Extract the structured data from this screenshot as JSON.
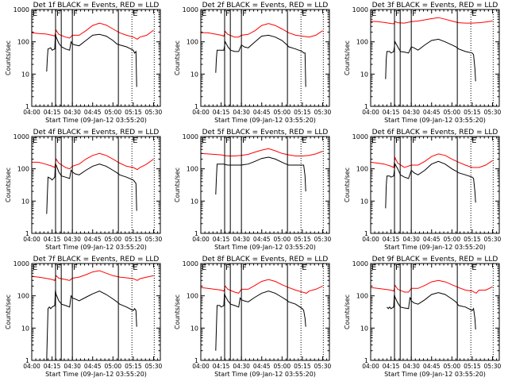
{
  "figure": {
    "layout": "3x3 grid",
    "xlabel": "Start Time (09-Jan-12 03:55:20)",
    "ylabel": "Counts/sec"
  },
  "chart_data": {
    "type": "line",
    "yscale": "log",
    "ylim": [
      1,
      1000
    ],
    "ytick_labels": [
      "1",
      "10",
      "100",
      "1000"
    ],
    "ytick_values": [
      1,
      10,
      100,
      1000
    ],
    "x_units": "minutes since 04:00",
    "xlim": [
      0,
      95
    ],
    "xtick_values": [
      0,
      15,
      30,
      45,
      60,
      75,
      90
    ],
    "xtick_labels": [
      "04:00",
      "04:15",
      "04:30",
      "04:45",
      "05:00",
      "05:15",
      "05:30"
    ],
    "xlabel": "Start Time (09-Jan-12 03:55:20)",
    "ylabel": "Counts/sec",
    "series_colors": {
      "Events": "#000000",
      "LLD": "#ff0000"
    },
    "markers": [
      {
        "label": "E",
        "x": 0,
        "style": "none"
      },
      {
        "label": "F",
        "x": 17.6,
        "style": "solid"
      },
      {
        "label": "",
        "x": 21.8,
        "style": "solid"
      },
      {
        "label": "F",
        "x": 30,
        "style": "solid"
      },
      {
        "label": "",
        "x": 64,
        "style": "solid"
      },
      {
        "label": "E",
        "x": 74,
        "style": "dotted"
      },
      {
        "label": "",
        "x": 90.5,
        "style": "dotted"
      }
    ],
    "panels": [
      {
        "title": "Det 1f BLACK = Events, RED = LLD",
        "lld": {
          "x": [
            0,
            5,
            10,
            15,
            17,
            18,
            20,
            25,
            28,
            30,
            35,
            40,
            45,
            50,
            55,
            60,
            65,
            70,
            75,
            78,
            80,
            85,
            90
          ],
          "y": [
            190,
            180,
            175,
            160,
            150,
            230,
            170,
            140,
            130,
            160,
            160,
            220,
            320,
            380,
            330,
            250,
            190,
            160,
            140,
            120,
            140,
            160,
            230
          ]
        },
        "events": {
          "x": [
            11,
            11.5,
            12,
            14,
            15,
            17,
            17.5,
            18,
            20,
            22,
            25,
            28,
            29,
            30,
            32,
            35,
            40,
            45,
            50,
            55,
            60,
            63,
            65,
            70,
            75,
            76,
            77,
            77.5
          ],
          "y": [
            12,
            30,
            60,
            65,
            55,
            60,
            180,
            140,
            90,
            70,
            60,
            55,
            100,
            85,
            80,
            75,
            110,
            160,
            170,
            150,
            110,
            85,
            80,
            70,
            55,
            45,
            50,
            4
          ]
        }
      },
      {
        "title": "Det 2f BLACK = Events, RED = LLD",
        "lld": {
          "x": [
            0,
            5,
            10,
            15,
            17,
            18,
            20,
            25,
            28,
            30,
            35,
            40,
            45,
            50,
            55,
            60,
            65,
            70,
            75,
            80,
            85,
            90
          ],
          "y": [
            190,
            190,
            175,
            160,
            150,
            210,
            170,
            140,
            140,
            160,
            170,
            220,
            320,
            370,
            320,
            250,
            190,
            160,
            150,
            140,
            160,
            220
          ]
        },
        "events": {
          "x": [
            11,
            11.5,
            12,
            14,
            15,
            17,
            18,
            20,
            22,
            25,
            28,
            30,
            32,
            35,
            40,
            45,
            50,
            55,
            60,
            63,
            65,
            70,
            75,
            76,
            77,
            77.5
          ],
          "y": [
            11,
            30,
            55,
            55,
            55,
            55,
            100,
            70,
            55,
            50,
            50,
            80,
            70,
            65,
            100,
            150,
            160,
            140,
            110,
            85,
            70,
            60,
            50,
            45,
            45,
            4
          ]
        }
      },
      {
        "title": "Det 3f BLACK = Events, RED = LLD",
        "lld": {
          "x": [
            0,
            5,
            10,
            15,
            17,
            18,
            20,
            25,
            30,
            35,
            40,
            45,
            50,
            55,
            60,
            65,
            70,
            75,
            80,
            85,
            90
          ],
          "y": [
            430,
            420,
            400,
            370,
            360,
            420,
            390,
            380,
            420,
            440,
            480,
            520,
            560,
            500,
            440,
            390,
            380,
            380,
            390,
            410,
            440
          ]
        },
        "events": {
          "x": [
            11,
            11.5,
            12,
            14,
            15,
            17,
            18,
            20,
            22,
            25,
            28,
            30,
            32,
            35,
            40,
            45,
            50,
            55,
            60,
            63,
            65,
            70,
            75,
            76,
            77,
            77.5
          ],
          "y": [
            7,
            30,
            50,
            50,
            45,
            50,
            100,
            70,
            50,
            48,
            45,
            70,
            65,
            55,
            80,
            110,
            120,
            100,
            80,
            70,
            60,
            50,
            45,
            40,
            15,
            6
          ]
        }
      },
      {
        "title": "Det 4f BLACK = Events, RED = LLD",
        "lld": {
          "x": [
            0,
            5,
            10,
            15,
            17,
            18,
            20,
            25,
            28,
            30,
            35,
            40,
            45,
            50,
            55,
            60,
            65,
            70,
            75,
            78,
            80,
            85,
            90
          ],
          "y": [
            160,
            160,
            140,
            120,
            110,
            200,
            150,
            110,
            100,
            120,
            140,
            200,
            260,
            300,
            260,
            200,
            150,
            120,
            110,
            95,
            110,
            140,
            200
          ]
        },
        "events": {
          "x": [
            11,
            11.5,
            12,
            14,
            15,
            17,
            17.5,
            18,
            20,
            22,
            25,
            28,
            29,
            30,
            32,
            35,
            40,
            45,
            50,
            55,
            60,
            63,
            65,
            70,
            75,
            76,
            77,
            77.5
          ],
          "y": [
            4,
            15,
            55,
            50,
            45,
            55,
            140,
            130,
            80,
            60,
            55,
            50,
            90,
            80,
            70,
            65,
            90,
            120,
            140,
            120,
            90,
            75,
            65,
            55,
            45,
            40,
            35,
            5
          ]
        }
      },
      {
        "title": "Det 5f BLACK = Events, RED = LLD",
        "lld": {
          "x": [
            0,
            5,
            10,
            15,
            17,
            20,
            25,
            30,
            35,
            40,
            45,
            50,
            55,
            60,
            65,
            70,
            75,
            80,
            85,
            90
          ],
          "y": [
            300,
            290,
            280,
            270,
            260,
            250,
            250,
            260,
            280,
            330,
            380,
            420,
            360,
            300,
            270,
            250,
            250,
            260,
            290,
            350
          ]
        },
        "events": {
          "x": [
            11,
            11.5,
            12,
            14,
            15,
            17,
            18,
            20,
            22,
            25,
            28,
            30,
            32,
            35,
            40,
            45,
            50,
            55,
            60,
            63,
            65,
            70,
            75,
            76,
            77,
            77.5
          ],
          "y": [
            16,
            50,
            140,
            140,
            140,
            140,
            135,
            130,
            130,
            130,
            130,
            130,
            135,
            140,
            170,
            210,
            230,
            200,
            160,
            140,
            130,
            130,
            130,
            130,
            60,
            20
          ]
        }
      },
      {
        "title": "Det 6f BLACK = Events, RED = LLD",
        "lld": {
          "x": [
            0,
            5,
            10,
            15,
            17,
            18,
            20,
            25,
            30,
            35,
            40,
            45,
            50,
            55,
            60,
            65,
            70,
            75,
            80,
            85,
            90
          ],
          "y": [
            160,
            150,
            140,
            120,
            110,
            220,
            150,
            110,
            130,
            130,
            170,
            240,
            290,
            260,
            200,
            160,
            130,
            110,
            110,
            130,
            180
          ]
        },
        "events": {
          "x": [
            11,
            11.5,
            12,
            14,
            15,
            17,
            18,
            20,
            22,
            25,
            28,
            30,
            32,
            35,
            40,
            45,
            50,
            55,
            60,
            63,
            65,
            70,
            75,
            76,
            77,
            77.5
          ],
          "y": [
            6,
            30,
            60,
            60,
            55,
            60,
            140,
            100,
            65,
            55,
            50,
            90,
            75,
            65,
            90,
            140,
            170,
            140,
            100,
            85,
            75,
            65,
            55,
            50,
            20,
            9
          ]
        }
      },
      {
        "title": "Det 7f BLACK = Events, RED = LLD",
        "lld": {
          "x": [
            0,
            5,
            10,
            15,
            17,
            18,
            20,
            25,
            28,
            30,
            35,
            40,
            45,
            50,
            55,
            60,
            65,
            70,
            75,
            78,
            80,
            85,
            90
          ],
          "y": [
            400,
            380,
            350,
            320,
            300,
            420,
            350,
            320,
            300,
            350,
            380,
            450,
            550,
            600,
            500,
            420,
            380,
            360,
            340,
            300,
            340,
            380,
            420
          ]
        },
        "events": {
          "x": [
            11,
            11.5,
            12,
            13,
            14,
            15,
            17,
            17.5,
            18,
            20,
            22,
            25,
            28,
            29,
            30,
            32,
            35,
            40,
            45,
            50,
            55,
            60,
            63,
            65,
            70,
            75,
            76,
            77,
            77.5
          ],
          "y": [
            1,
            6,
            40,
            45,
            40,
            45,
            50,
            150,
            110,
            70,
            55,
            50,
            45,
            100,
            85,
            80,
            70,
            90,
            115,
            140,
            110,
            80,
            65,
            55,
            45,
            35,
            40,
            35,
            11
          ]
        }
      },
      {
        "title": "Det 8f BLACK = Events, RED = LLD",
        "lld": {
          "x": [
            0,
            5,
            10,
            15,
            17,
            18,
            20,
            25,
            28,
            30,
            35,
            40,
            45,
            50,
            55,
            60,
            65,
            70,
            75,
            78,
            80,
            85,
            90
          ],
          "y": [
            180,
            170,
            160,
            150,
            140,
            200,
            160,
            130,
            120,
            160,
            160,
            210,
            280,
            320,
            280,
            220,
            180,
            150,
            130,
            120,
            140,
            160,
            200
          ]
        },
        "events": {
          "x": [
            11,
            11.5,
            12,
            14,
            15,
            17,
            17.5,
            18,
            20,
            22,
            25,
            28,
            29,
            30,
            32,
            35,
            40,
            45,
            50,
            55,
            60,
            63,
            65,
            70,
            75,
            76,
            77,
            77.5
          ],
          "y": [
            2,
            10,
            50,
            50,
            45,
            50,
            120,
            100,
            70,
            55,
            50,
            45,
            85,
            75,
            70,
            65,
            90,
            120,
            140,
            120,
            90,
            75,
            65,
            55,
            40,
            35,
            20,
            11
          ]
        }
      },
      {
        "title": "Det 9f BLACK = Events, RED = LLD",
        "lld": {
          "x": [
            0,
            5,
            10,
            15,
            17,
            18,
            20,
            25,
            28,
            30,
            35,
            40,
            45,
            50,
            55,
            60,
            65,
            70,
            75,
            78,
            80,
            85,
            90
          ],
          "y": [
            180,
            170,
            160,
            150,
            140,
            210,
            160,
            130,
            130,
            170,
            170,
            210,
            270,
            300,
            270,
            220,
            180,
            150,
            140,
            120,
            150,
            150,
            190
          ]
        },
        "events": {
          "x": [
            12,
            13,
            14,
            15,
            17,
            17.5,
            18,
            20,
            22,
            25,
            28,
            29,
            30,
            32,
            35,
            40,
            45,
            50,
            55,
            60,
            63,
            65,
            70,
            75,
            76,
            77,
            77.5
          ],
          "y": [
            45,
            40,
            45,
            40,
            45,
            110,
            90,
            60,
            45,
            42,
            40,
            90,
            70,
            60,
            55,
            75,
            110,
            125,
            110,
            80,
            65,
            50,
            45,
            35,
            40,
            20,
            9
          ]
        }
      }
    ]
  }
}
